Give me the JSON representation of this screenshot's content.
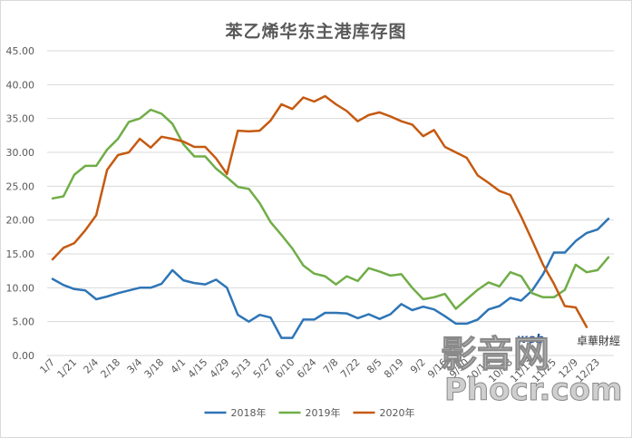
{
  "chart_data": {
    "type": "line",
    "title": "苯乙烯华东主港库存图",
    "xlabel": "",
    "ylabel": "",
    "ylim": [
      0,
      45
    ],
    "yticks": [
      "0.00",
      "5.00",
      "10.00",
      "15.00",
      "20.00",
      "25.00",
      "30.00",
      "35.00",
      "40.00",
      "45.00"
    ],
    "grid": true,
    "legend_position": "bottom",
    "categories": [
      "1/7",
      "1/14",
      "1/21",
      "1/28",
      "2/4",
      "2/11",
      "2/18",
      "2/25",
      "3/4",
      "3/11",
      "3/18",
      "3/25",
      "4/1",
      "4/8",
      "4/15",
      "4/22",
      "4/29",
      "5/6",
      "5/13",
      "5/20",
      "5/27",
      "6/3",
      "6/10",
      "6/17",
      "6/24",
      "7/1",
      "7/8",
      "7/15",
      "7/22",
      "7/29",
      "8/5",
      "8/12",
      "8/19",
      "8/26",
      "9/2",
      "9/9",
      "9/16",
      "9/23",
      "9/30",
      "10/7",
      "10/14",
      "10/21",
      "10/28",
      "11/4",
      "11/11",
      "11/18",
      "11/25",
      "12/2",
      "12/9",
      "12/16",
      "12/23",
      "12/30"
    ],
    "tick_labels": [
      "1/7",
      "1/21",
      "2/4",
      "2/18",
      "3/4",
      "3/18",
      "4/1",
      "4/15",
      "4/29",
      "5/13",
      "5/27",
      "6/10",
      "6/24",
      "7/8",
      "7/22",
      "8/5",
      "8/19",
      "9/2",
      "9/16",
      "9/30",
      "10/14",
      "10/28",
      "11/11",
      "11/25",
      "12/9",
      "12/23"
    ],
    "series": [
      {
        "name": "2018年",
        "color": "#2e75b6",
        "values": [
          11.3,
          10.4,
          9.8,
          9.6,
          8.3,
          8.7,
          9.2,
          9.6,
          10.0,
          10.0,
          10.6,
          12.6,
          11.1,
          10.7,
          10.5,
          11.2,
          10.0,
          6.0,
          5.0,
          6.0,
          5.6,
          2.6,
          2.6,
          5.3,
          5.3,
          6.3,
          6.3,
          6.2,
          5.5,
          6.1,
          5.4,
          6.1,
          7.6,
          6.7,
          7.2,
          6.8,
          5.8,
          4.7,
          4.7,
          5.3,
          6.8,
          7.3,
          8.5,
          8.1,
          9.6,
          12.0,
          15.2,
          15.2,
          16.9,
          18.1,
          18.6,
          20.2
        ]
      },
      {
        "name": "2019年",
        "color": "#70ad47",
        "values": [
          23.2,
          23.5,
          26.7,
          28.0,
          28.0,
          30.4,
          32.0,
          34.5,
          35.0,
          36.3,
          35.7,
          34.2,
          31.2,
          29.4,
          29.4,
          27.6,
          26.3,
          24.9,
          24.6,
          22.5,
          19.7,
          17.8,
          15.8,
          13.3,
          12.1,
          11.7,
          10.5,
          11.7,
          11.0,
          12.9,
          12.4,
          11.8,
          12.0,
          10.0,
          8.3,
          8.6,
          9.1,
          6.9,
          8.3,
          9.7,
          10.8,
          10.2,
          12.3,
          11.7,
          9.2,
          8.6,
          8.6,
          9.7,
          13.4,
          12.3,
          12.6,
          14.5
        ]
      },
      {
        "name": "2020年",
        "color": "#c55a11",
        "values": [
          14.2,
          15.9,
          16.6,
          18.5,
          20.7,
          27.4,
          29.6,
          30.0,
          32.0,
          30.7,
          32.3,
          32.0,
          31.6,
          30.8,
          30.8,
          29.1,
          26.8,
          33.2,
          33.1,
          33.2,
          34.7,
          37.1,
          36.4,
          38.1,
          37.5,
          38.3,
          37.1,
          36.1,
          34.6,
          35.5,
          35.9,
          35.3,
          34.6,
          34.1,
          32.4,
          33.3,
          30.8,
          30.0,
          29.2,
          26.6,
          25.5,
          24.3,
          23.7,
          20.5,
          17.0,
          13.4,
          10.6,
          7.3,
          7.1,
          4.2,
          null,
          null
        ]
      }
    ]
  },
  "watermark": {
    "site_text": "影音网",
    "site_domain": "Phocr.com",
    "web_text": "web",
    "brand_cn": "卓華財經"
  }
}
